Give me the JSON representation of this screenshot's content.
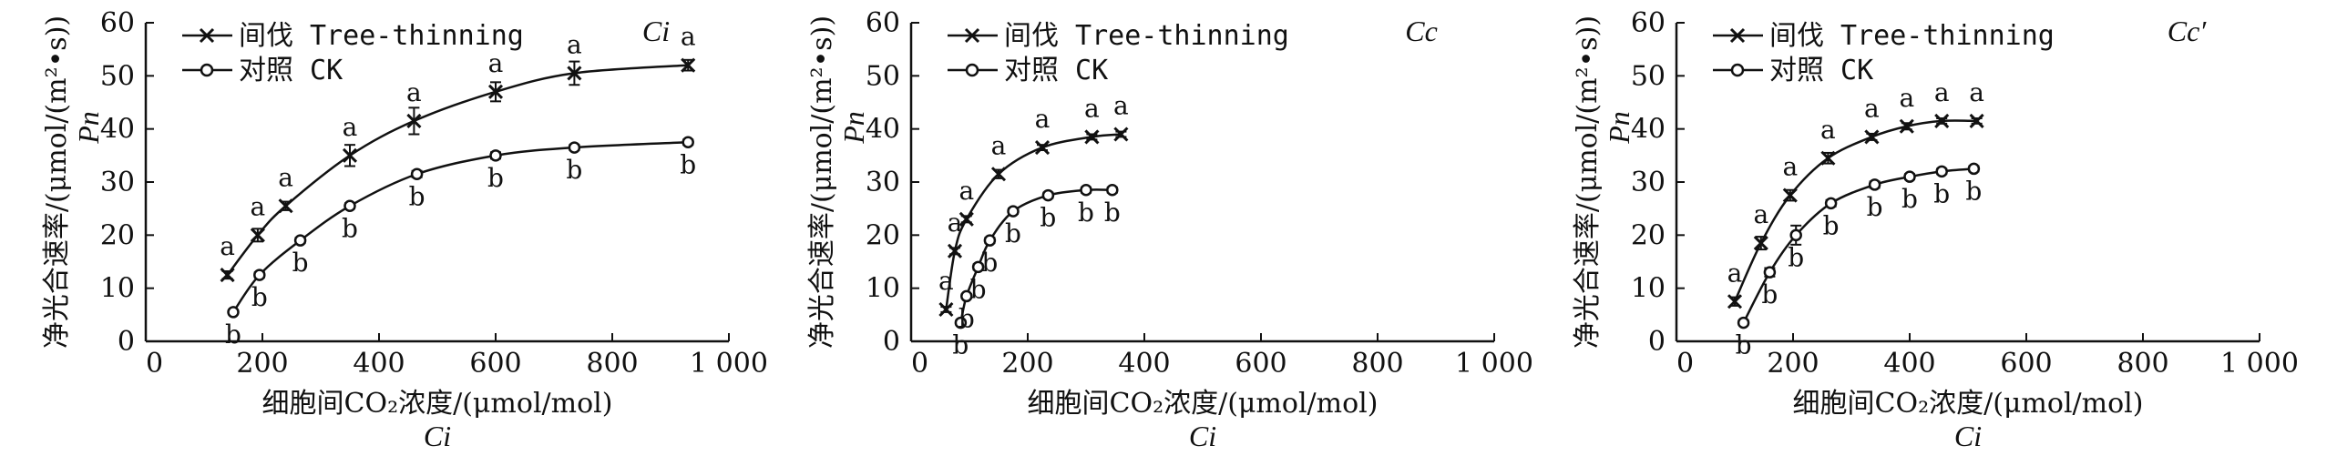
{
  "chart_data": [
    {
      "type": "line",
      "corner_label": "Ci",
      "ylabel": "净光合速率/(μmol/(m²•s))",
      "ylabel_symbol": "Pn",
      "xlabel": "细胞间CO₂浓度/(μmol/mol)",
      "xlabel_symbol": "Ci",
      "xlim": [
        0,
        1000
      ],
      "ylim": [
        0,
        60
      ],
      "xticks": [
        "0",
        "200",
        "400",
        "600",
        "800",
        "1 000"
      ],
      "yticks": [
        "0",
        "10",
        "20",
        "30",
        "40",
        "50",
        "60"
      ],
      "series": [
        {
          "name": "间伐 Tree-thinning",
          "marker": "x",
          "x": [
            140,
            192,
            240,
            350,
            460,
            600,
            735,
            930
          ],
          "y": [
            12.5,
            20,
            25.5,
            35,
            41.5,
            47,
            50.5,
            52
          ],
          "err": [
            0.7,
            1.2,
            0.8,
            2.0,
            2.5,
            1.8,
            2.2,
            1.0
          ],
          "labels": [
            "a",
            "a",
            "a",
            "a",
            "a",
            "a",
            "a",
            "a"
          ]
        },
        {
          "name": "对照 CK",
          "marker": "o",
          "x": [
            150,
            195,
            265,
            350,
            465,
            600,
            735,
            930
          ],
          "y": [
            5.5,
            12.5,
            19,
            25.5,
            31.5,
            35,
            36.5,
            37.5
          ],
          "err": [
            0.4,
            0.5,
            0.5,
            0.5,
            0.6,
            0.6,
            0.5,
            0.5
          ],
          "labels": [
            "b",
            "b",
            "b",
            "b",
            "b",
            "b",
            "b",
            "b"
          ]
        }
      ]
    },
    {
      "type": "line",
      "corner_label": "Cc",
      "ylabel": "净光合速率/(μmol/(m²•s))",
      "ylabel_symbol": "Pn",
      "xlabel": "细胞间CO₂浓度/(μmol/mol)",
      "xlabel_symbol": "Ci",
      "xlim": [
        0,
        1000
      ],
      "ylim": [
        0,
        60
      ],
      "xticks": [
        "0",
        "200",
        "400",
        "600",
        "800",
        "1 000"
      ],
      "yticks": [
        "0",
        "10",
        "20",
        "30",
        "40",
        "50",
        "60"
      ],
      "series": [
        {
          "name": "间伐 Tree-thinning",
          "marker": "x",
          "x": [
            60,
            75,
            95,
            150,
            225,
            310,
            360
          ],
          "y": [
            6,
            17,
            23,
            31.5,
            36.5,
            38.5,
            39
          ],
          "err": [
            0.5,
            0.6,
            0.6,
            0.8,
            0.5,
            0.5,
            0.5
          ],
          "labels": [
            "a",
            "a",
            "a",
            "a",
            "a",
            "a",
            "a"
          ]
        },
        {
          "name": "对照 CK",
          "marker": "o",
          "x": [
            85,
            95,
            115,
            135,
            175,
            235,
            300,
            345
          ],
          "y": [
            3.5,
            8.5,
            14,
            19,
            24.5,
            27.5,
            28.5,
            28.5
          ],
          "err": [
            0.4,
            0.4,
            0.5,
            0.5,
            0.5,
            0.5,
            0.5,
            0.5
          ],
          "labels": [
            "b",
            "b",
            "b",
            "b",
            "b",
            "b",
            "b",
            "b"
          ]
        }
      ]
    },
    {
      "type": "line",
      "corner_label": "Cc′",
      "ylabel": "净光合速率/(μmol/(m²•s))",
      "ylabel_symbol": "Pn",
      "xlabel": "细胞间CO₂浓度/(μmol/mol)",
      "xlabel_symbol": "Ci",
      "xlim": [
        0,
        1000
      ],
      "ylim": [
        0,
        60
      ],
      "xticks": [
        "0",
        "200",
        "400",
        "600",
        "800",
        "1 000"
      ],
      "yticks": [
        "0",
        "10",
        "20",
        "30",
        "40",
        "50",
        "60"
      ],
      "series": [
        {
          "name": "间伐 Tree-thinning",
          "marker": "x",
          "x": [
            100,
            145,
            195,
            260,
            335,
            395,
            455,
            515
          ],
          "y": [
            7.5,
            18.5,
            27.5,
            34.5,
            38.5,
            40.5,
            41.5,
            41.5
          ],
          "err": [
            0.8,
            1.2,
            1.0,
            1.0,
            0.6,
            0.6,
            0.5,
            0.5
          ],
          "labels": [
            "a",
            "a",
            "a",
            "a",
            "a",
            "a",
            "a",
            "a"
          ]
        },
        {
          "name": "对照 CK",
          "marker": "o",
          "x": [
            115,
            160,
            205,
            265,
            340,
            400,
            455,
            510
          ],
          "y": [
            3.5,
            13,
            20,
            26,
            29.5,
            31,
            32,
            32.5
          ],
          "err": [
            0.4,
            0.8,
            1.8,
            0.6,
            0.6,
            0.5,
            0.5,
            0.5
          ],
          "labels": [
            "b",
            "b",
            "b",
            "b",
            "b",
            "b",
            "b",
            "b"
          ]
        }
      ]
    }
  ]
}
